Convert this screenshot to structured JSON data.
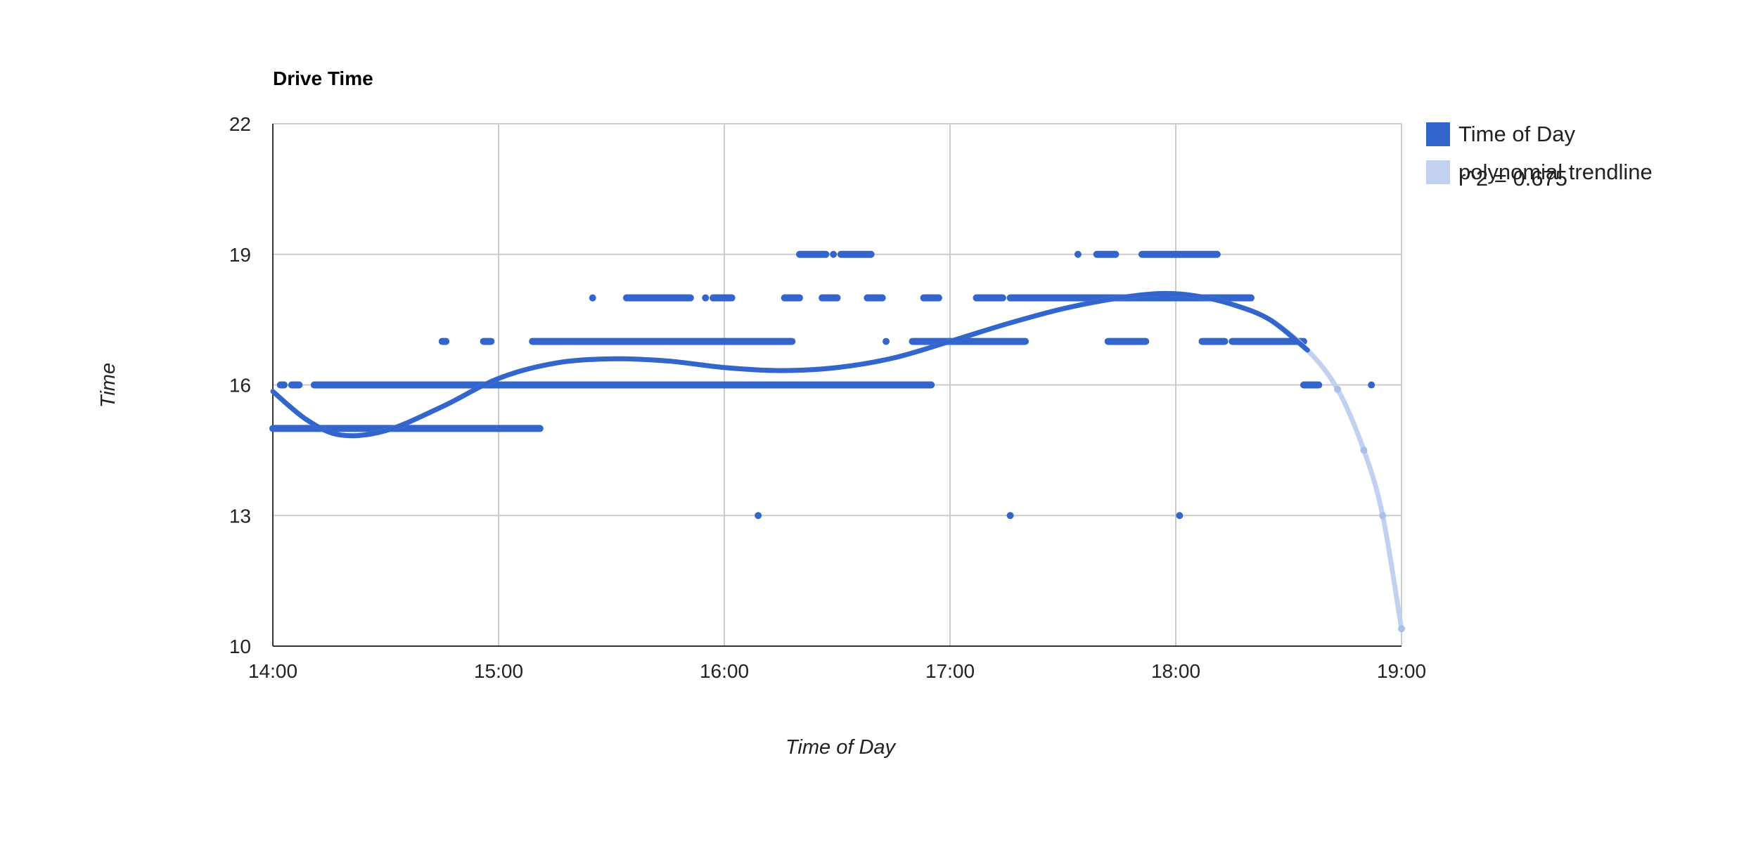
{
  "chart_data": {
    "type": "scatter",
    "title": "Drive Time",
    "xlabel": "Time of Day",
    "ylabel": "Time",
    "xlim": [
      "14:00",
      "19:00"
    ],
    "ylim": [
      10,
      22
    ],
    "x_ticks": [
      "14:00",
      "15:00",
      "16:00",
      "17:00",
      "18:00",
      "19:00"
    ],
    "y_ticks": [
      10,
      13,
      16,
      19,
      22
    ],
    "grid": true,
    "legend_position": "right",
    "colors": {
      "series": "#3366cc",
      "trend": "#c2d1f0",
      "grid": "#cccccc",
      "axis": "#333333"
    },
    "legend": [
      {
        "label": "Time of Day",
        "kind": "series"
      },
      {
        "label": "polynomial trendline",
        "kind": "trend"
      },
      {
        "label": "r^2 = 0.675",
        "kind": "note"
      }
    ],
    "series": [
      {
        "name": "Time of Day",
        "segments": [
          {
            "y": 15,
            "from": "14:00",
            "to": "15:11"
          },
          {
            "y": 16,
            "from": "14:02",
            "to": "14:03"
          },
          {
            "y": 16,
            "from": "14:05",
            "to": "14:07"
          },
          {
            "y": 16,
            "from": "14:11",
            "to": "16:55"
          },
          {
            "y": 16,
            "from": "18:34",
            "to": "18:38"
          },
          {
            "y": 17,
            "from": "14:45",
            "to": "14:46"
          },
          {
            "y": 17,
            "from": "14:56",
            "to": "14:58"
          },
          {
            "y": 17,
            "from": "15:09",
            "to": "16:18"
          },
          {
            "y": 17,
            "from": "16:50",
            "to": "17:20"
          },
          {
            "y": 17,
            "from": "17:42",
            "to": "17:52"
          },
          {
            "y": 17,
            "from": "18:07",
            "to": "18:13"
          },
          {
            "y": 17,
            "from": "18:15",
            "to": "18:34"
          },
          {
            "y": 18,
            "from": "15:34",
            "to": "15:51"
          },
          {
            "y": 18,
            "from": "15:57",
            "to": "16:02"
          },
          {
            "y": 18,
            "from": "16:16",
            "to": "16:20"
          },
          {
            "y": 18,
            "from": "16:26",
            "to": "16:30"
          },
          {
            "y": 18,
            "from": "16:38",
            "to": "16:42"
          },
          {
            "y": 18,
            "from": "16:53",
            "to": "16:57"
          },
          {
            "y": 18,
            "from": "17:07",
            "to": "17:14"
          },
          {
            "y": 18,
            "from": "17:16",
            "to": "18:20"
          },
          {
            "y": 19,
            "from": "16:20",
            "to": "16:27"
          },
          {
            "y": 19,
            "from": "16:31",
            "to": "16:39"
          },
          {
            "y": 19,
            "from": "17:39",
            "to": "17:44"
          },
          {
            "y": 19,
            "from": "17:51",
            "to": "18:11"
          }
        ],
        "points": [
          {
            "x": "15:25",
            "y": 18
          },
          {
            "x": "15:55",
            "y": 18
          },
          {
            "x": "16:29",
            "y": 19
          },
          {
            "x": "16:43",
            "y": 17
          },
          {
            "x": "17:34",
            "y": 19
          },
          {
            "x": "18:52",
            "y": 16
          },
          {
            "x": "16:09",
            "y": 13
          },
          {
            "x": "17:16",
            "y": 13
          },
          {
            "x": "18:01",
            "y": 13
          }
        ]
      }
    ],
    "trendline": {
      "name": "polynomial trendline",
      "r2": 0.675,
      "points": [
        {
          "x": "14:00",
          "y": 15.85
        },
        {
          "x": "14:09",
          "y": 15.2
        },
        {
          "x": "14:18",
          "y": 14.85
        },
        {
          "x": "14:30",
          "y": 14.95
        },
        {
          "x": "14:45",
          "y": 15.5
        },
        {
          "x": "15:00",
          "y": 16.15
        },
        {
          "x": "15:15",
          "y": 16.5
        },
        {
          "x": "15:30",
          "y": 16.6
        },
        {
          "x": "15:45",
          "y": 16.55
        },
        {
          "x": "16:00",
          "y": 16.4
        },
        {
          "x": "16:15",
          "y": 16.33
        },
        {
          "x": "16:30",
          "y": 16.4
        },
        {
          "x": "16:45",
          "y": 16.62
        },
        {
          "x": "17:00",
          "y": 17.0
        },
        {
          "x": "17:15",
          "y": 17.4
        },
        {
          "x": "17:30",
          "y": 17.75
        },
        {
          "x": "17:45",
          "y": 18.0
        },
        {
          "x": "17:56",
          "y": 18.1
        },
        {
          "x": "18:05",
          "y": 18.05
        },
        {
          "x": "18:15",
          "y": 17.85
        },
        {
          "x": "18:25",
          "y": 17.5
        },
        {
          "x": "18:35",
          "y": 16.8
        },
        {
          "x": "18:43",
          "y": 15.9
        },
        {
          "x": "18:50",
          "y": 14.5
        },
        {
          "x": "18:55",
          "y": 13.0
        },
        {
          "x": "19:00",
          "y": 10.4
        }
      ]
    }
  }
}
